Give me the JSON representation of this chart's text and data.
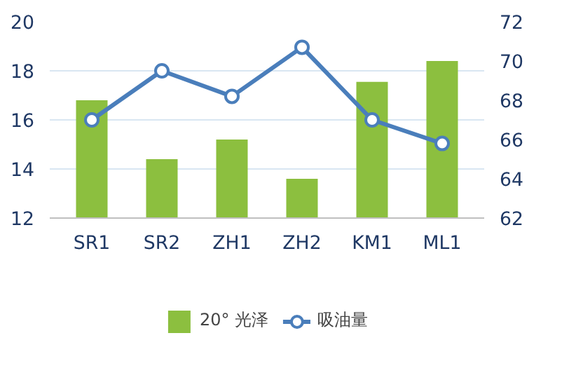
{
  "chart_data": {
    "type": "bar",
    "categories": [
      "SR1",
      "SR2",
      "ZH1",
      "ZH2",
      "KM1",
      "ML1"
    ],
    "series": [
      {
        "name": "20° 光泽",
        "color": "#8cbf3f",
        "values": [
          16.8,
          14.4,
          15.2,
          13.6,
          17.55,
          18.4
        ]
      },
      {
        "name": "吸油量",
        "type": "line",
        "axis": "y2",
        "color": "#4a7ebb",
        "marker": "circle",
        "values": [
          67.0,
          69.5,
          68.2,
          70.7,
          67.0,
          65.8
        ]
      }
    ],
    "ylim": [
      12,
      20
    ],
    "yticks": [
      12,
      14,
      16,
      18,
      20
    ],
    "y2lim": [
      62,
      72
    ],
    "y2ticks": [
      62,
      64,
      66,
      68,
      70,
      72
    ],
    "grid": "y",
    "legend": "bottom"
  }
}
